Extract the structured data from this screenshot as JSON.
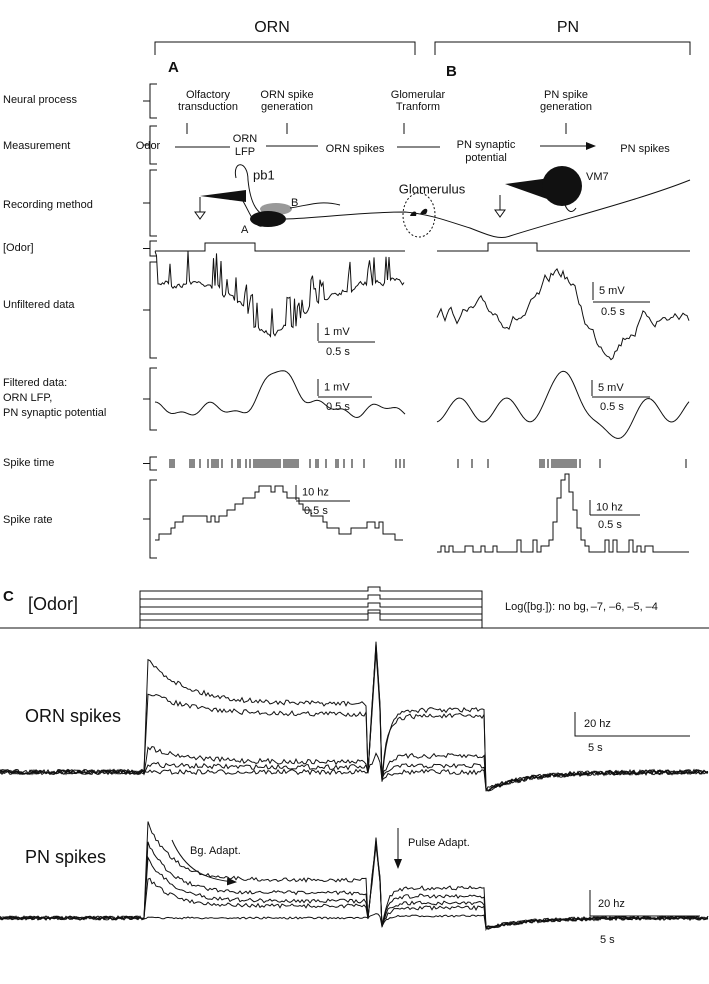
{
  "header": {
    "orn": "ORN",
    "pn": "PN"
  },
  "panels": {
    "a": "A",
    "b": "B",
    "c": "C"
  },
  "row_labels": {
    "neural_process": "Neural process",
    "measurement": "Measurement",
    "recording_method": "Recording method",
    "odor": "[Odor]",
    "unfiltered": "Unfiltered data",
    "filtered": [
      "Filtered data:",
      "ORN LFP,",
      "PN synaptic potential"
    ],
    "spike_time": "Spike time",
    "spike_rate": "Spike rate"
  },
  "neural_process": [
    [
      "Olfactory",
      "transduction"
    ],
    [
      "ORN spike",
      "generation"
    ],
    [
      "Glomerular",
      "Tranform"
    ],
    [
      "PN spike",
      "generation"
    ]
  ],
  "measurement": [
    [
      "Odor"
    ],
    [
      "ORN",
      "LFP"
    ],
    [
      "ORN spikes"
    ],
    [
      "PN synaptic",
      "potential"
    ],
    [
      "PN spikes"
    ]
  ],
  "recording": {
    "pb1": "pb1",
    "b": "B",
    "a": "A",
    "glomerulus": "Glomerulus",
    "vm7": "VM7"
  },
  "scale_bars": {
    "orn_unfiltered": [
      "1 mV",
      "0.5 s"
    ],
    "pn_unfiltered": [
      "5 mV",
      "0.5 s"
    ],
    "orn_filtered": [
      "1 mV",
      "0.5 s"
    ],
    "pn_filtered": [
      "5 mV",
      "0.5 s"
    ],
    "orn_rate": [
      "10 hz",
      "0.5 s"
    ],
    "pn_rate": [
      "10 hz",
      "0.5 s"
    ]
  },
  "panel_c": {
    "odor": "[Odor]",
    "legend_prefix": "Log([bg.]): no bg,",
    "legend": [
      {
        "label": "–7,",
        "color": "#1fa3ad"
      },
      {
        "label": "–6,",
        "color": "#2e9e37"
      },
      {
        "label": "–5,",
        "color": "#aba121"
      },
      {
        "label": "–4",
        "color": "#a51d1d"
      }
    ],
    "orn_label": "ORN spikes",
    "pn_label": "PN spikes",
    "bg_adapt": "Bg. Adapt.",
    "pulse_adapt": "Pulse Adapt.",
    "orn_scale": [
      "20 hz",
      "5 s"
    ],
    "pn_scale": [
      "20 hz",
      "5 s"
    ]
  }
}
